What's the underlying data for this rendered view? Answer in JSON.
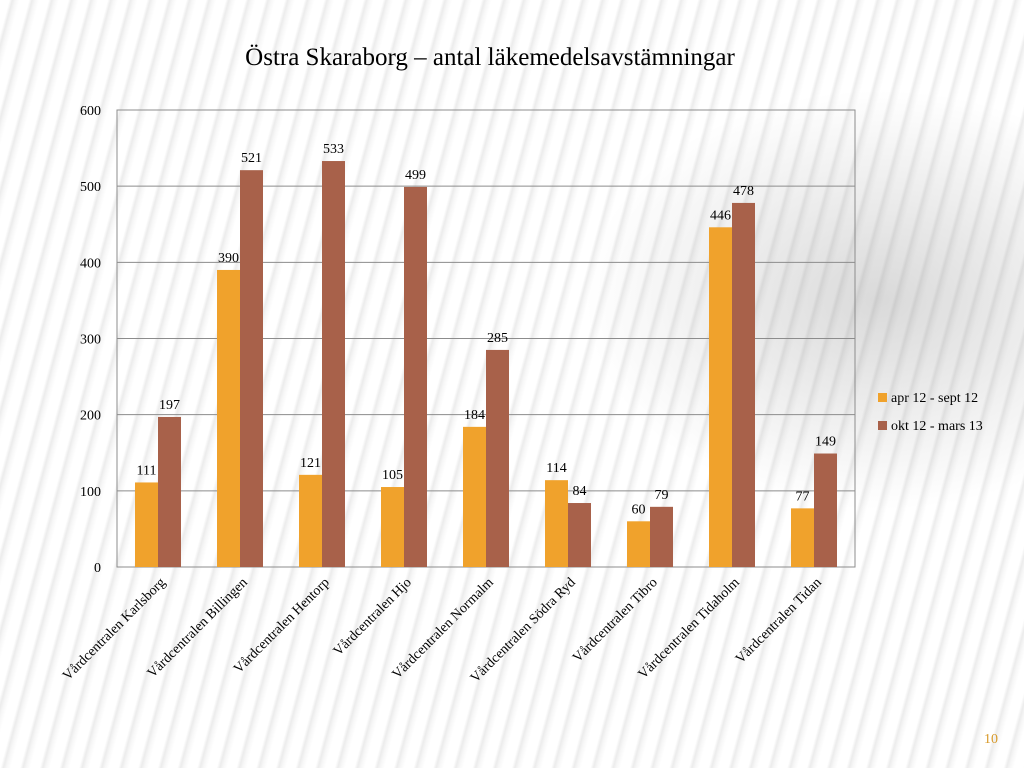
{
  "slide": {
    "page_number": "10"
  },
  "colors": {
    "series1": "#f0a22c",
    "series2": "#a8614a",
    "grid": "#8c8c8c"
  },
  "chart_data": {
    "type": "bar",
    "title": "Östra Skaraborg – antal läkemedelsavstämningar",
    "xlabel": "",
    "ylabel": "",
    "ylim": [
      0,
      600
    ],
    "yticks": [
      0,
      100,
      200,
      300,
      400,
      500,
      600
    ],
    "grid": true,
    "legend_position": "right",
    "categories": [
      "Vårdcentralen Karlsborg",
      "Vårdcentralen Billingen",
      "Vårdcentralen Hentorp",
      "Vårdcentralen Hjo",
      "Vårdcentralen Normalm",
      "Vårdcentralen Södra Ryd",
      "Vårdcentralen Tibro",
      "Vårdcentralen Tidaholm",
      "Vårdcentralen Tidan"
    ],
    "series": [
      {
        "name": "apr 12 - sept 12",
        "values": [
          111,
          390,
          121,
          105,
          184,
          114,
          60,
          446,
          77
        ]
      },
      {
        "name": "okt 12 - mars 13",
        "values": [
          197,
          521,
          533,
          499,
          285,
          84,
          79,
          478,
          149
        ]
      }
    ]
  }
}
